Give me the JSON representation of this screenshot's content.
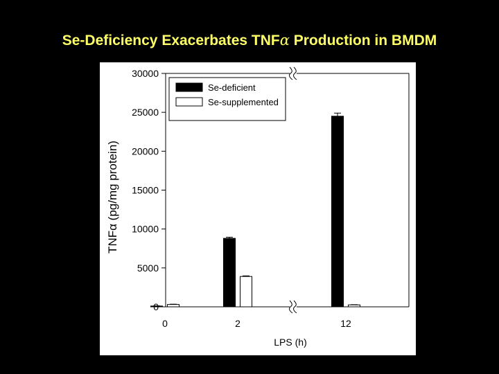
{
  "slide": {
    "title_prefix": "Se-Deficiency Exacerbates TNF",
    "title_greek": "α",
    "title_suffix": " Production in BMDM"
  },
  "chart_data": {
    "type": "bar",
    "title": "Se-Deficiency Exacerbates TNFα Production in BMDM",
    "xlabel": "LPS (h)",
    "ylabel": "TNFα (pg/mg protein)",
    "ylim": [
      0,
      30000
    ],
    "yticks": [
      0,
      5000,
      10000,
      15000,
      20000,
      25000,
      30000
    ],
    "yticks_labels": [
      "0",
      "5000",
      "10000",
      "15000",
      "20000",
      "25000",
      "30000"
    ],
    "categories": [
      "0",
      "2",
      "12"
    ],
    "axis_break": "x-axis break between 2 and 12",
    "legend_position": "top-left",
    "series": [
      {
        "name": "Se-deficient",
        "color": "#000000",
        "values": [
          100,
          8800,
          24500
        ],
        "errors": [
          20,
          150,
          400
        ]
      },
      {
        "name": "Se-supplemented",
        "color": "#ffffff",
        "values": [
          300,
          3900,
          250
        ],
        "errors": [
          40,
          80,
          30
        ]
      }
    ]
  }
}
